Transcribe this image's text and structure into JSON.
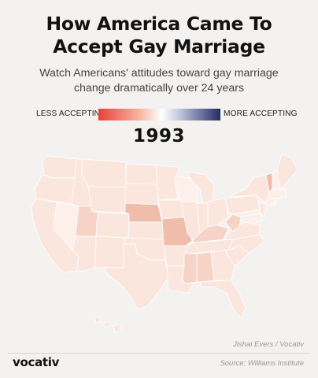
{
  "header": {
    "title_line1": "How America Came To",
    "title_line2": "Accept Gay Marriage",
    "subtitle_line1": "Watch Americans' attitudes toward gay marriage",
    "subtitle_line2": "change dramatically over 24 years"
  },
  "legend": {
    "left_label": "LESS ACCEPTING",
    "right_label": "MORE ACCEPTING",
    "colors": [
      "#e8413a",
      "#ffffff",
      "#1f2c66"
    ]
  },
  "year": "1993",
  "map": {
    "colors": {
      "base": "#fbe6de",
      "light": "#fdf0ea",
      "medium": "#f6d3c6",
      "darker": "#f0bdab",
      "border": "#ffffff"
    }
  },
  "footer": {
    "credit": "Jishai Evers / Vocativ",
    "logo": "vocativ",
    "source": "Source: Williams Institute"
  }
}
